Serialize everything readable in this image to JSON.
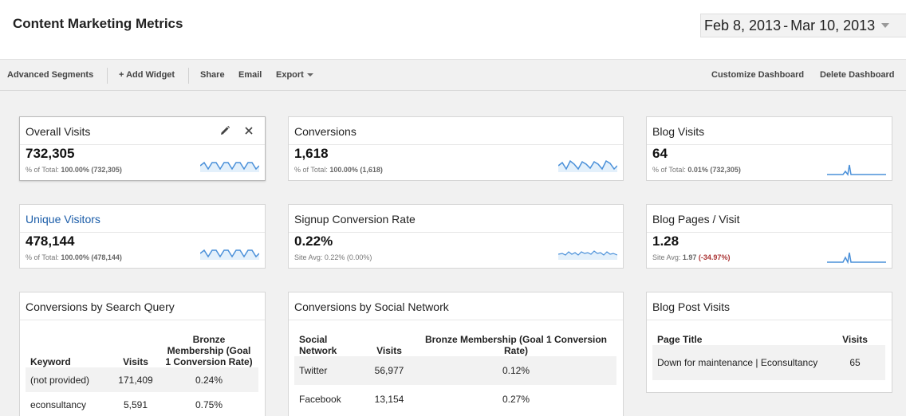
{
  "header": {
    "title": "Content Marketing Metrics",
    "date_start": "Feb 8, 2013",
    "date_sep": "-",
    "date_end": "Mar 10, 2013"
  },
  "toolbar": {
    "advanced_segments": "Advanced Segments",
    "add_widget": "+ Add Widget",
    "share": "Share",
    "email": "Email",
    "export": "Export",
    "customize": "Customize Dashboard",
    "delete": "Delete Dashboard"
  },
  "colors": {
    "sparkline": "#4a90d9",
    "sparkline_fill": "#e3f0fb",
    "link": "#1a5ca8",
    "negative": "#aa3333"
  },
  "widgets": {
    "overall_visits": {
      "title": "Overall Visits",
      "value": "732,305",
      "sub_label": "% of Total:",
      "sub_value": "100.00% (732,305)",
      "icons": [
        "pencil-icon",
        "close-icon"
      ]
    },
    "conversions": {
      "title": "Conversions",
      "value": "1,618",
      "sub_label": "% of Total:",
      "sub_value": "100.00% (1,618)"
    },
    "blog_visits": {
      "title": "Blog Visits",
      "value": "64",
      "sub_label": "% of Total:",
      "sub_value": "0.01% (732,305)"
    },
    "unique_visitors": {
      "title": "Unique Visitors",
      "value": "478,144",
      "sub_label": "% of Total:",
      "sub_value": "100.00% (478,144)"
    },
    "signup_rate": {
      "title": "Signup Conversion Rate",
      "value": "0.22%",
      "sub_label": "Site Avg: 0.22% (0.00%)"
    },
    "blog_pages": {
      "title": "Blog Pages / Visit",
      "value": "1.28",
      "sub_label": "Site Avg:",
      "sub_value": "1.97",
      "sub_delta": "(-34.97%)"
    }
  },
  "search_query": {
    "title": "Conversions by Search Query",
    "headers": [
      "Keyword",
      "Visits",
      "Bronze Membership (Goal 1 Conversion Rate)"
    ],
    "rows": [
      [
        "(not provided)",
        "171,409",
        "0.24%"
      ],
      [
        "econsultancy",
        "5,591",
        "0.75%"
      ]
    ]
  },
  "social_network": {
    "title": "Conversions by Social Network",
    "headers": [
      "Social Network",
      "Visits",
      "Bronze Membership (Goal 1 Conversion Rate)"
    ],
    "rows": [
      [
        "Twitter",
        "56,977",
        "0.12%"
      ],
      [
        "Facebook",
        "13,154",
        "0.27%"
      ]
    ]
  },
  "blog_post_visits": {
    "title": "Blog Post Visits",
    "headers": [
      "Page Title",
      "Visits"
    ],
    "rows": [
      [
        "Down for maintenance | Econsultancy",
        "65"
      ]
    ]
  }
}
